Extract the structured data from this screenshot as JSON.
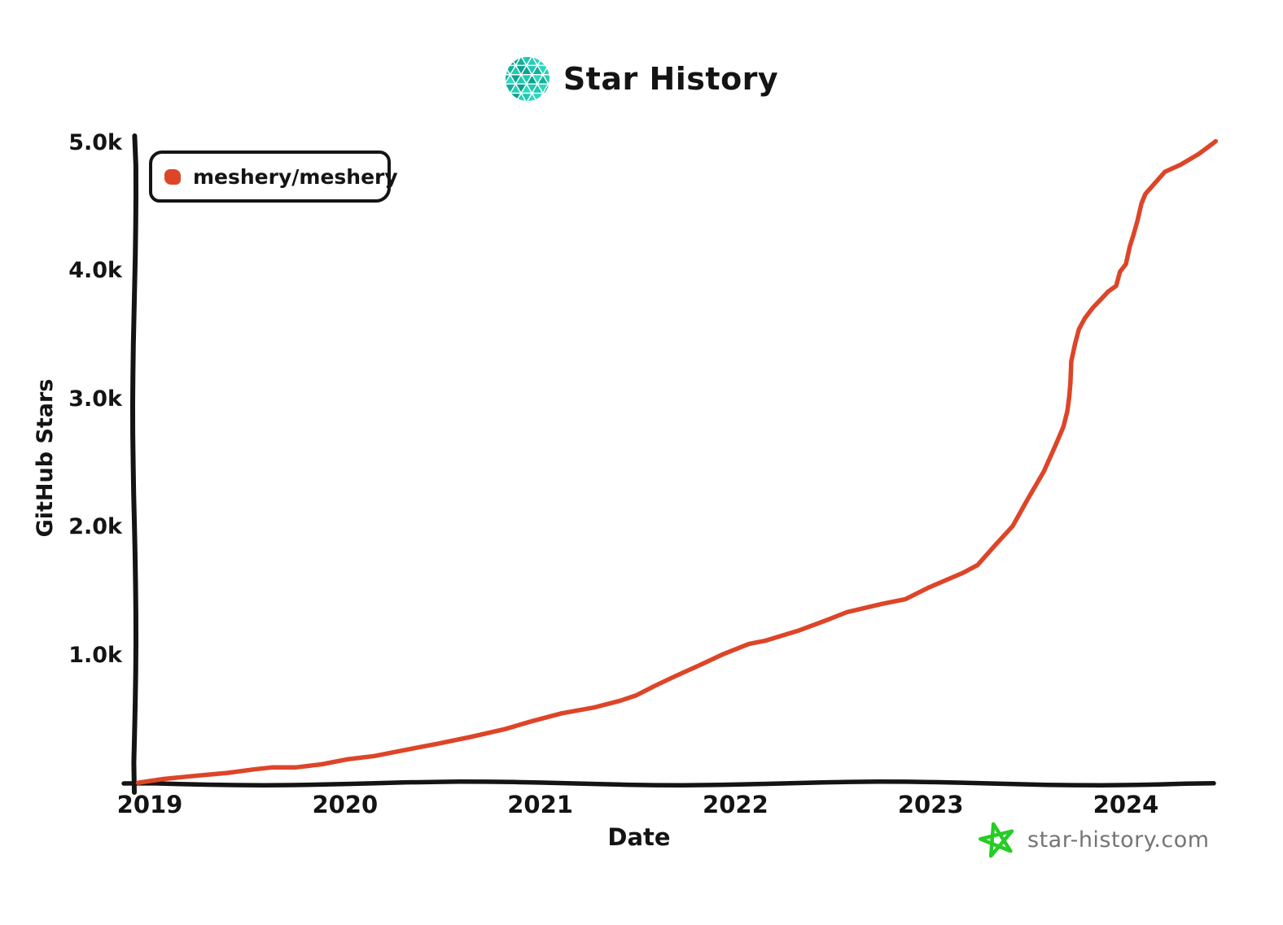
{
  "header": {
    "title": "Star History"
  },
  "legend": {
    "series_label": "meshery/meshery"
  },
  "footer": {
    "site": "star-history.com"
  },
  "colors": {
    "line": "#dd4528",
    "axis": "#141414",
    "text": "#141414",
    "footer_text": "#757575",
    "star_green": "#24cd24",
    "logo_teal_palette": [
      "#1ec9b0",
      "#12b09a",
      "#2bd8bd",
      "#0fa18d",
      "#23cfb4"
    ]
  },
  "chart_data": {
    "type": "line",
    "title": "Star History",
    "xlabel": "Date",
    "ylabel": "GitHub Stars",
    "xlim": [
      2018.92,
      2024.52
    ],
    "ylim": [
      0,
      5100
    ],
    "grid": false,
    "legend_position": "top-left",
    "xticks": [
      {
        "value": 2019,
        "label": "2019"
      },
      {
        "value": 2020,
        "label": "2020"
      },
      {
        "value": 2021,
        "label": "2021"
      },
      {
        "value": 2022,
        "label": "2022"
      },
      {
        "value": 2023,
        "label": "2023"
      },
      {
        "value": 2024,
        "label": "2024"
      }
    ],
    "yticks": [
      {
        "value": 1000,
        "label": "1.0k"
      },
      {
        "value": 2000,
        "label": "2.0k"
      },
      {
        "value": 3000,
        "label": "3.0k"
      },
      {
        "value": 4000,
        "label": "4.0k"
      },
      {
        "value": 5000,
        "label": "5.0k"
      }
    ],
    "series": [
      {
        "name": "meshery/meshery",
        "color": "#dd4528",
        "points": [
          [
            2018.94,
            5
          ],
          [
            2019.07,
            38
          ],
          [
            2019.23,
            63
          ],
          [
            2019.4,
            85
          ],
          [
            2019.53,
            108
          ],
          [
            2019.63,
            122
          ],
          [
            2019.75,
            122
          ],
          [
            2019.88,
            148
          ],
          [
            2020.01,
            190
          ],
          [
            2020.15,
            218
          ],
          [
            2020.32,
            268
          ],
          [
            2020.48,
            312
          ],
          [
            2020.65,
            362
          ],
          [
            2020.82,
            420
          ],
          [
            2020.96,
            484
          ],
          [
            2021.11,
            548
          ],
          [
            2021.28,
            598
          ],
          [
            2021.41,
            650
          ],
          [
            2021.49,
            688
          ],
          [
            2021.59,
            762
          ],
          [
            2021.69,
            832
          ],
          [
            2021.82,
            922
          ],
          [
            2021.94,
            1010
          ],
          [
            2022.07,
            1092
          ],
          [
            2022.15,
            1117
          ],
          [
            2022.32,
            1194
          ],
          [
            2022.47,
            1276
          ],
          [
            2022.57,
            1333
          ],
          [
            2022.75,
            1397
          ],
          [
            2022.87,
            1435
          ],
          [
            2022.99,
            1530
          ],
          [
            2023.17,
            1651
          ],
          [
            2023.24,
            1708
          ],
          [
            2023.33,
            1860
          ],
          [
            2023.42,
            2006
          ],
          [
            2023.5,
            2222
          ],
          [
            2023.58,
            2432
          ],
          [
            2023.64,
            2641
          ],
          [
            2023.68,
            2787
          ],
          [
            2023.7,
            2910
          ],
          [
            2023.71,
            3025
          ],
          [
            2023.716,
            3130
          ],
          [
            2023.72,
            3290
          ],
          [
            2023.74,
            3430
          ],
          [
            2023.76,
            3545
          ],
          [
            2023.79,
            3632
          ],
          [
            2023.83,
            3715
          ],
          [
            2023.87,
            3778
          ],
          [
            2023.91,
            3841
          ],
          [
            2023.95,
            3880
          ],
          [
            2023.97,
            3990
          ],
          [
            2024.0,
            4050
          ],
          [
            2024.02,
            4190
          ],
          [
            2024.04,
            4290
          ],
          [
            2024.06,
            4400
          ],
          [
            2024.08,
            4530
          ],
          [
            2024.1,
            4600
          ],
          [
            2024.2,
            4770
          ],
          [
            2024.28,
            4825
          ],
          [
            2024.37,
            4908
          ],
          [
            2024.44,
            4990
          ],
          [
            2024.46,
            5016
          ]
        ]
      }
    ]
  }
}
